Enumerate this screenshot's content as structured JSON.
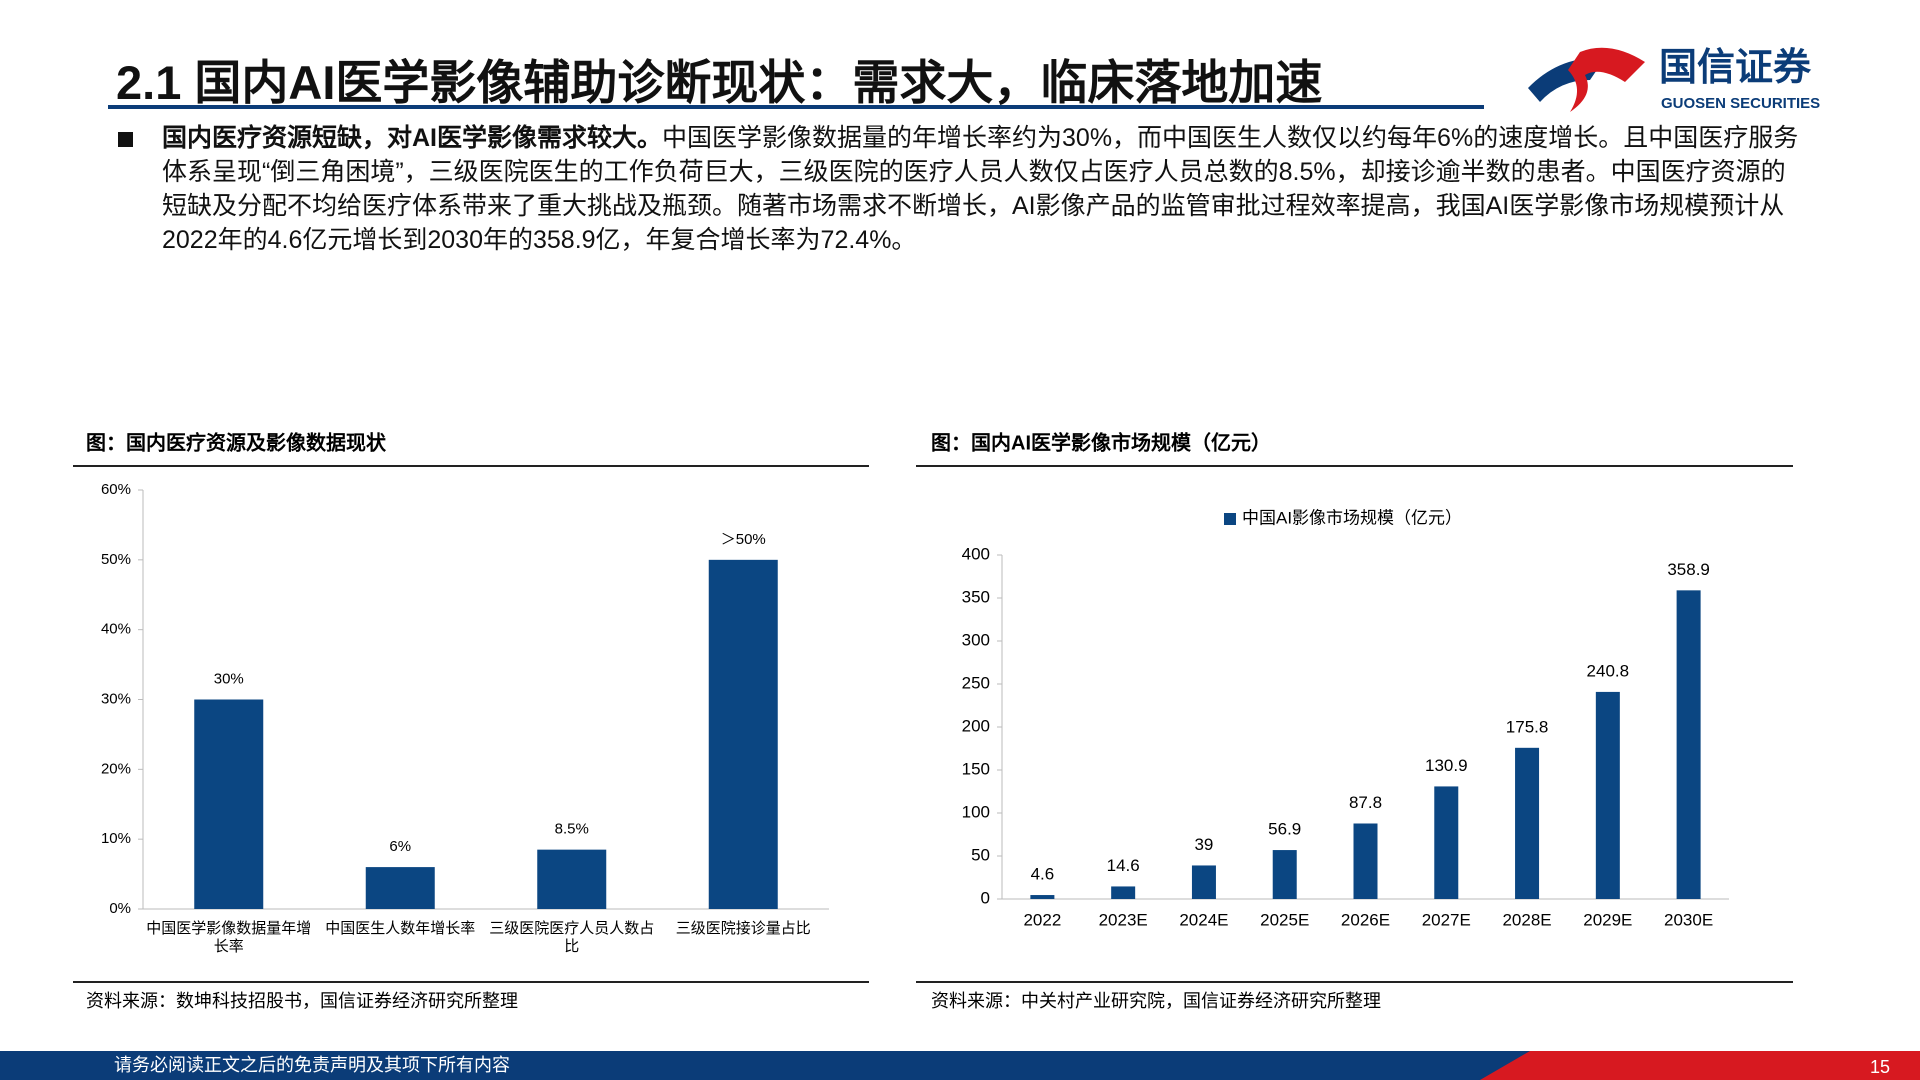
{
  "header": {
    "title": "2.1 国内AI医学影像辅助诊断现状：需求大，临床落地加速",
    "logo": "国信证券",
    "logo_en": "GUOSEN SECURITIES"
  },
  "bullet": {
    "lead": "国内医疗资源短缺，对AI医学影像需求较大。",
    "text": "中国医学影像数据量的年增长率约为30%，而中国医生人数仅以约每年6%的速度增长。且中国医疗服务体系呈现“倒三角困境”，三级医院医生的工作负荷巨大，三级医院的医疗人员人数仅占医疗人员总数的8.5%，却接诊逾半数的患者。中国医疗资源的短缺及分配不均给医疗体系带来了重大挑战及瓶颈。随著市场需求不断增长，AI影像产品的监管审批过程效率提高，我国AI医学影像市场规模预计从2022年的4.6亿元增长到2030年的358.9亿，年复合增长率为72.4%。"
  },
  "chart_data": [
    {
      "type": "bar",
      "title": "图：国内医疗资源及影像数据现状",
      "source": "资料来源：数坤科技招股书，国信证券经济研究所整理",
      "categories": [
        "中国医学影像数据量年增长率",
        "中国医生人数年增长率",
        "三级医院医疗人员人数占比",
        "三级医院接诊量占比"
      ],
      "series": [
        {
          "color": "#0b4682",
          "values": [
            30,
            6,
            8.5,
            50
          ],
          "value_labels": [
            "30%",
            "6%",
            "8.5%",
            "＞50%"
          ]
        }
      ],
      "ylim": [
        0,
        60
      ],
      "yticks": [
        {
          "value": 0,
          "label": "0%"
        },
        {
          "value": 10,
          "label": "10%"
        },
        {
          "value": 20,
          "label": "20%"
        },
        {
          "value": 30,
          "label": "30%"
        },
        {
          "value": 40,
          "label": "40%"
        },
        {
          "value": 50,
          "label": "50%"
        },
        {
          "value": 60,
          "label": "60%"
        }
      ]
    },
    {
      "type": "bar",
      "title": "图：国内AI医学影像市场规模（亿元）",
      "source": "资料来源：中关村产业研究院，国信证券经济研究所整理",
      "categories": [
        "2022",
        "2023E",
        "2024E",
        "2025E",
        "2026E",
        "2027E",
        "2028E",
        "2029E",
        "2030E"
      ],
      "series": [
        {
          "name": "中国AI影像市场规模（亿元）",
          "color": "#0b4682",
          "values": [
            4.6,
            14.6,
            39,
            56.9,
            87.8,
            130.9,
            175.8,
            240.8,
            358.9
          ]
        }
      ],
      "ylim": [
        0,
        400
      ],
      "yticks": [
        0,
        50,
        100,
        150,
        200,
        250,
        300,
        350,
        400
      ]
    }
  ],
  "footer": {
    "text": "请务必阅读正文之后的免责声明及其项下所有内容",
    "page": "15"
  }
}
